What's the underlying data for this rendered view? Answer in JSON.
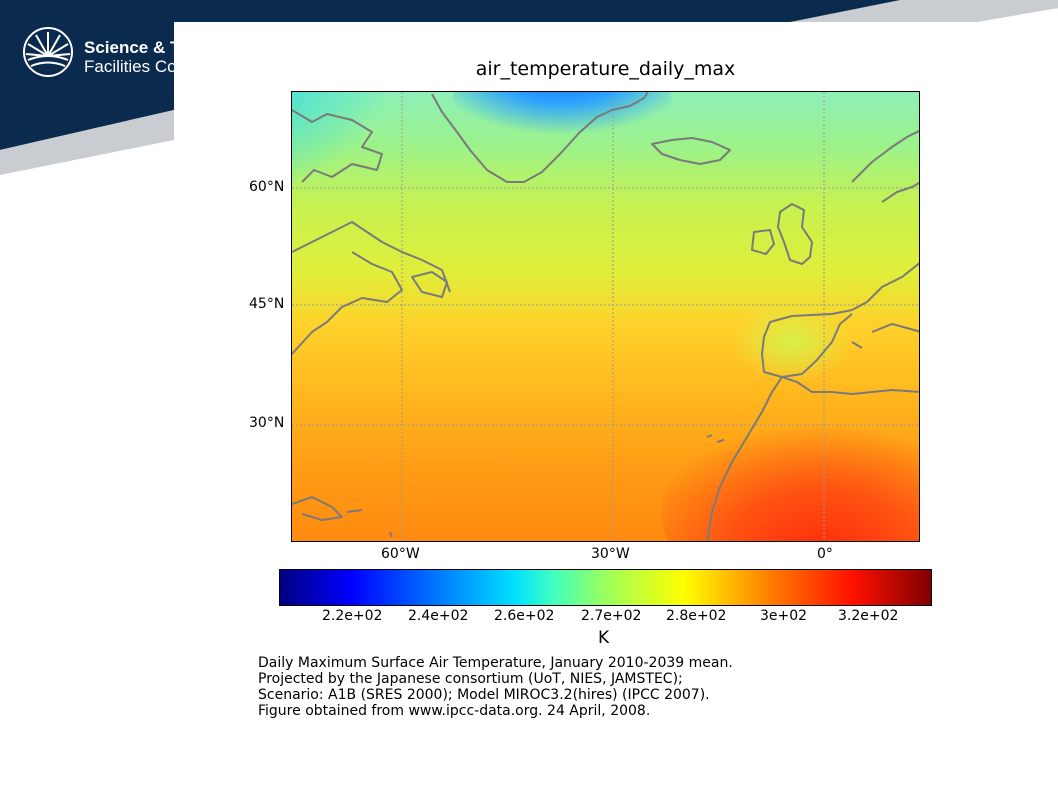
{
  "header": {
    "logo_line1": "Science & Te",
    "logo_line2": "Facilities Cou"
  },
  "figure": {
    "title": "air_temperature_daily_max",
    "lat_labels": [
      "60°N",
      "45°N",
      "30°N"
    ],
    "lon_labels": [
      "60°W",
      "30°W",
      "0°"
    ],
    "colorbar": {
      "ticks": [
        "2.2e+02",
        "2.4e+02",
        "2.6e+02",
        "2.7e+02",
        "2.8e+02",
        "3e+02",
        "3.2e+02"
      ],
      "unit": "K",
      "colormap": "jet"
    },
    "caption": [
      "Daily Maximum Surface Air Temperature, January 2010-2039 mean.",
      "Projected by the Japanese consortium (UoT, NIES, JAMSTEC);",
      "Scenario: A1B (SRES 2000); Model MIROC3.2(hires) (IPCC 2007).",
      "Figure obtained from www.ipcc-data.org. 24 April, 2008."
    ]
  },
  "colors": {
    "banner": "#0a2a4e",
    "coastline": "#7a7a7a",
    "grid": "#999999"
  }
}
